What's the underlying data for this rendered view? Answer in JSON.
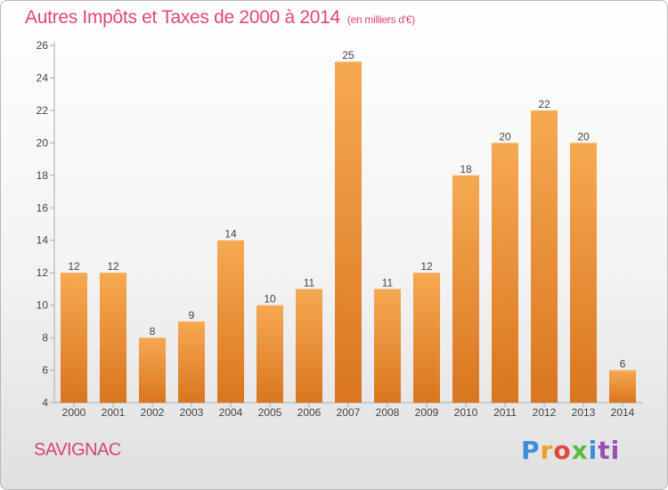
{
  "header": {
    "title": "Autres Impôts et Taxes de 2000 à 2014",
    "unit": "(en milliers d'€)"
  },
  "footer": {
    "place": "SAVIGNAC",
    "brand": [
      "P",
      "r",
      "o",
      "x",
      "i",
      "ti"
    ]
  },
  "colors": {
    "title": "#e0457b",
    "bar_light": "#f6a952",
    "bar_dark": "#db7a25",
    "axis": "#999999"
  },
  "chart_data": {
    "type": "bar",
    "title": "Autres Impôts et Taxes de 2000 à 2014",
    "subtitle": "(en milliers d'€)",
    "categories": [
      "2000",
      "2001",
      "2002",
      "2003",
      "2004",
      "2005",
      "2006",
      "2007",
      "2008",
      "2009",
      "2010",
      "2011",
      "2012",
      "2013",
      "2014"
    ],
    "values": [
      12,
      12,
      8,
      9,
      14,
      10,
      11,
      25,
      11,
      12,
      18,
      20,
      22,
      20,
      6
    ],
    "ylim": [
      4,
      26
    ],
    "yticks": [
      4,
      6,
      8,
      10,
      12,
      14,
      16,
      18,
      20,
      22,
      24,
      26
    ],
    "grid": false,
    "xlabel": "",
    "ylabel": ""
  }
}
